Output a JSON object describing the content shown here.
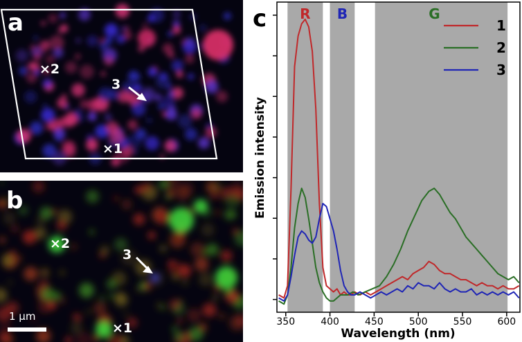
{
  "panels": {
    "a": {
      "letter": "a",
      "markers": [
        "×2",
        "×1"
      ],
      "arrow_label": "3"
    },
    "b": {
      "letter": "b",
      "markers": [
        "×2",
        "×1"
      ],
      "arrow_label": "3",
      "scalebar": "1 μm"
    },
    "c": {
      "letter": "c"
    }
  },
  "colors": {
    "red": "#c0282a",
    "green": "#2a6e25",
    "blue": "#1f25b5",
    "band": "#a9a9a9"
  },
  "chart_data": {
    "type": "line",
    "xlabel": "Wavelength (nm)",
    "ylabel": "Emission intensity",
    "xlim": [
      340,
      615
    ],
    "ylim": [
      0,
      1
    ],
    "xticks": [
      350,
      400,
      450,
      500,
      550,
      600
    ],
    "bands": [
      {
        "label": "R",
        "from": 352,
        "to": 392,
        "color": "#c0282a"
      },
      {
        "label": "B",
        "from": 400,
        "to": 428,
        "color": "#1f25b5"
      },
      {
        "label": "G",
        "from": 451,
        "to": 601,
        "color": "#2a6e25"
      }
    ],
    "legend_position": "top-right",
    "series": [
      {
        "name": "1",
        "color": "#c0282a",
        "x": [
          342,
          348,
          352,
          356,
          360,
          364,
          368,
          372,
          376,
          380,
          384,
          388,
          392,
          396,
          400,
          404,
          408,
          412,
          416,
          420,
          424,
          428,
          434,
          440,
          446,
          452,
          458,
          464,
          470,
          476,
          482,
          488,
          494,
          500,
          506,
          512,
          518,
          524,
          530,
          536,
          542,
          548,
          554,
          560,
          566,
          572,
          578,
          584,
          590,
          596,
          602,
          608,
          614
        ],
        "y": [
          0.05,
          0.04,
          0.08,
          0.4,
          0.8,
          0.9,
          0.94,
          0.955,
          0.93,
          0.85,
          0.66,
          0.35,
          0.14,
          0.08,
          0.07,
          0.06,
          0.07,
          0.05,
          0.06,
          0.05,
          0.05,
          0.06,
          0.05,
          0.06,
          0.05,
          0.06,
          0.07,
          0.08,
          0.09,
          0.1,
          0.11,
          0.1,
          0.12,
          0.13,
          0.14,
          0.16,
          0.15,
          0.13,
          0.12,
          0.12,
          0.11,
          0.1,
          0.1,
          0.09,
          0.08,
          0.09,
          0.08,
          0.08,
          0.07,
          0.08,
          0.07,
          0.07,
          0.08
        ]
      },
      {
        "name": "2",
        "color": "#2a6e25",
        "x": [
          342,
          348,
          352,
          356,
          360,
          364,
          368,
          372,
          376,
          380,
          384,
          388,
          392,
          396,
          400,
          404,
          408,
          412,
          416,
          420,
          426,
          432,
          440,
          448,
          456,
          464,
          472,
          480,
          488,
          496,
          504,
          512,
          518,
          524,
          530,
          536,
          542,
          548,
          554,
          560,
          566,
          572,
          578,
          584,
          590,
          596,
          602,
          608,
          614
        ],
        "y": [
          0.03,
          0.02,
          0.05,
          0.14,
          0.27,
          0.35,
          0.4,
          0.37,
          0.3,
          0.22,
          0.14,
          0.09,
          0.06,
          0.04,
          0.03,
          0.03,
          0.04,
          0.05,
          0.05,
          0.05,
          0.06,
          0.05,
          0.06,
          0.07,
          0.08,
          0.11,
          0.15,
          0.2,
          0.26,
          0.31,
          0.36,
          0.39,
          0.4,
          0.38,
          0.35,
          0.32,
          0.3,
          0.27,
          0.24,
          0.22,
          0.2,
          0.18,
          0.16,
          0.14,
          0.12,
          0.11,
          0.1,
          0.11,
          0.09
        ]
      },
      {
        "name": "3",
        "color": "#1f25b5",
        "x": [
          342,
          348,
          352,
          356,
          360,
          364,
          368,
          372,
          376,
          380,
          384,
          388,
          392,
          396,
          400,
          404,
          408,
          412,
          416,
          420,
          424,
          428,
          434,
          440,
          446,
          452,
          458,
          464,
          470,
          476,
          482,
          488,
          494,
          500,
          506,
          512,
          518,
          524,
          530,
          536,
          542,
          548,
          554,
          560,
          566,
          572,
          578,
          584,
          590,
          596,
          602,
          608,
          614
        ],
        "y": [
          0.04,
          0.03,
          0.05,
          0.11,
          0.18,
          0.24,
          0.26,
          0.25,
          0.23,
          0.22,
          0.24,
          0.3,
          0.35,
          0.34,
          0.3,
          0.26,
          0.2,
          0.13,
          0.08,
          0.06,
          0.05,
          0.05,
          0.06,
          0.05,
          0.04,
          0.05,
          0.06,
          0.05,
          0.06,
          0.07,
          0.06,
          0.08,
          0.07,
          0.09,
          0.08,
          0.08,
          0.07,
          0.09,
          0.07,
          0.06,
          0.07,
          0.06,
          0.06,
          0.07,
          0.05,
          0.06,
          0.05,
          0.06,
          0.05,
          0.06,
          0.05,
          0.06,
          0.04
        ]
      }
    ]
  }
}
